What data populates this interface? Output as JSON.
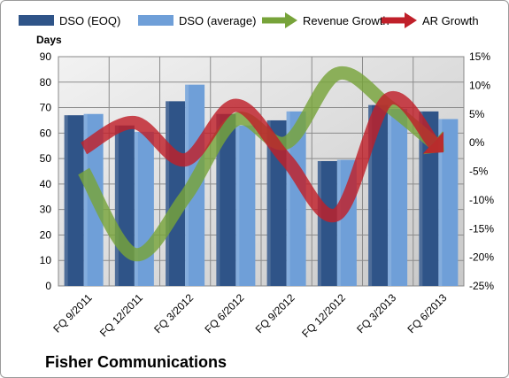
{
  "chart_data": {
    "type": "bar",
    "title": "",
    "ylabel": "Days",
    "y2label": "",
    "categories": [
      "FQ 9/2011",
      "FQ 12/2011",
      "FQ 3/2012",
      "FQ 6/2012",
      "FQ 9/2012",
      "FQ 12/2012",
      "FQ 3/2013",
      "FQ 6/2013"
    ],
    "ylim": [
      0,
      90
    ],
    "y_ticks": [
      "0",
      "10",
      "20",
      "30",
      "40",
      "50",
      "60",
      "70",
      "80",
      "90"
    ],
    "y2lim": [
      -25,
      15
    ],
    "y2_ticks": [
      "-25%",
      "-20%",
      "-15%",
      "-10%",
      "-5%",
      "0%",
      "5%",
      "10%",
      "15%"
    ],
    "grid": true,
    "legend_position": "top",
    "series": [
      {
        "name": "DSO (EOQ)",
        "kind": "bar",
        "axis": "left",
        "color": "#2f5488",
        "values": [
          67,
          63,
          72.5,
          67.5,
          65,
          49,
          71,
          68.5
        ]
      },
      {
        "name": "DSO (average)",
        "kind": "bar",
        "axis": "left",
        "color": "#6f9fd8",
        "values": [
          67.5,
          60.5,
          79,
          63,
          68.5,
          49.5,
          69.5,
          65.5
        ]
      },
      {
        "name": "Revenue Growth",
        "kind": "line",
        "axis": "right",
        "color": "#77a33a",
        "values": [
          -5,
          -19.5,
          -9.5,
          4,
          0,
          12,
          6.5,
          0
        ]
      },
      {
        "name": "AR Growth",
        "kind": "line",
        "axis": "right",
        "color": "#c0202a",
        "values": [
          -1,
          3.5,
          -3,
          6.5,
          -3,
          -12.5,
          7.5,
          0
        ]
      }
    ]
  },
  "footer": {
    "title": "Fisher Communications"
  }
}
